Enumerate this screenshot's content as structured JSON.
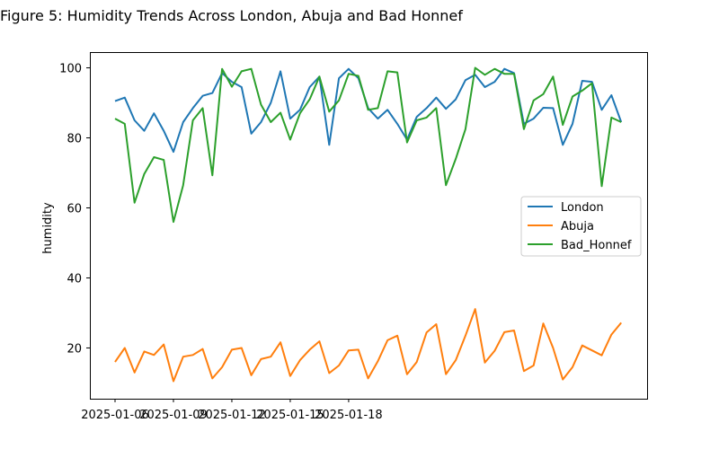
{
  "chart_data": {
    "type": "line",
    "title": "Figure 5: Humidity Trends Across London, Abuja and Bad Honnef",
    "xlabel": "",
    "ylabel": "humidity",
    "ylim": [
      5.5,
      104.5
    ],
    "x_ticks": [
      "2025-01-06",
      "2025-01-09",
      "2025-01-12",
      "2025-01-15",
      "2025-01-18"
    ],
    "y_ticks": [
      20,
      40,
      60,
      80,
      100
    ],
    "grid": false,
    "legend_position": "right",
    "series": [
      {
        "name": "London",
        "color": "#1f77b4",
        "values": [
          90.5,
          91.5,
          85,
          82,
          87,
          82,
          76,
          84.5,
          88.5,
          92,
          92.8,
          98.5,
          96,
          94.5,
          81.2,
          84.5,
          90,
          99,
          85.5,
          88,
          94.5,
          97.5,
          78,
          97,
          99.7,
          97,
          88.5,
          85.5,
          88,
          84,
          79.5,
          86,
          88.5,
          91.5,
          88.3,
          91,
          96.5,
          98,
          94.5,
          96,
          99.7,
          98.5,
          84,
          85.5,
          88.6,
          88.5,
          78,
          84,
          96.3,
          96,
          88,
          92.2,
          84.5
        ]
      },
      {
        "name": "Abuja",
        "color": "#ff7f0e",
        "values": [
          16,
          20,
          13,
          19,
          18,
          21,
          10.5,
          17.5,
          18,
          19.7,
          11.3,
          14.5,
          19.5,
          20,
          12.2,
          16.8,
          17.5,
          21.6,
          12,
          16.5,
          19.5,
          21.9,
          12.8,
          15,
          19.3,
          19.5,
          11.3,
          16.2,
          22.2,
          23.5,
          12.5,
          16,
          24.4,
          26.8,
          12.5,
          16.5,
          23.5,
          31.1,
          15.8,
          19.2,
          24.5,
          25,
          13.4,
          15,
          27,
          20,
          11,
          14.5,
          20.7,
          19.3,
          17.9,
          23.8,
          27.2
        ]
      },
      {
        "name": "Bad_Honnef",
        "color": "#2ca02c",
        "values": [
          85.5,
          84,
          61.5,
          69.7,
          74.5,
          73.7,
          56,
          66.5,
          85,
          88.5,
          69.3,
          99.7,
          94.6,
          99,
          99.7,
          89.5,
          84.5,
          87.2,
          79.5,
          87,
          91,
          97.5,
          87.5,
          90.7,
          98.3,
          97.7,
          88,
          88.5,
          99,
          98.7,
          78.7,
          85,
          85.8,
          88.5,
          66.5,
          74,
          82.5,
          100,
          98,
          99.7,
          98.3,
          98.3,
          82.5,
          90.7,
          92.5,
          97.5,
          83.7,
          91.8,
          93.5,
          95.6,
          66.2,
          85.8,
          84.5
        ]
      }
    ]
  }
}
